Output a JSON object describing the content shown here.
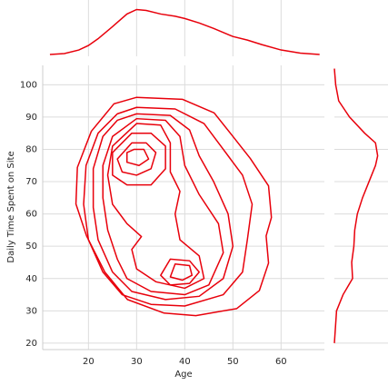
{
  "chart_data": {
    "type": "kde_joint",
    "xlabel": "Age",
    "ylabel": "Daily Time Spent on Site",
    "color": "#e8000b",
    "xlim": [
      10.5,
      69
    ],
    "xticks": [
      20,
      30,
      40,
      50,
      60
    ],
    "ylim": [
      18,
      106
    ],
    "yticks": [
      20,
      30,
      40,
      50,
      60,
      70,
      80,
      90,
      100
    ],
    "grid": true,
    "contours": [
      {
        "x": [
          30,
          39.5,
          46.1,
          49.9,
          53.6,
          57.4,
          58,
          56.9,
          57.4,
          55.5,
          50.8,
          42.3,
          35.7,
          28.1,
          23.4,
          19.6,
          17.4,
          17.7,
          20.6,
          25.3
        ],
        "y": [
          96.1,
          95.5,
          91.3,
          84.2,
          77.2,
          68.7,
          58.9,
          53.2,
          44.8,
          36.3,
          30.7,
          28.5,
          29.3,
          33.5,
          42,
          53.2,
          63.1,
          74.4,
          85.6,
          94.1
        ]
      },
      {
        "x": [
          30,
          38,
          44,
          48,
          52,
          54,
          53,
          52,
          48,
          40,
          33,
          27,
          23,
          20,
          19,
          19.5,
          22,
          26
        ],
        "y": [
          93,
          92.5,
          88,
          80,
          72,
          63,
          52,
          42,
          35,
          31.5,
          32,
          35,
          42,
          52,
          63,
          75,
          85,
          91
        ]
      },
      {
        "x": [
          30,
          37,
          41,
          43,
          46,
          49,
          50,
          48,
          43,
          36,
          29,
          25,
          22,
          21,
          21,
          23,
          26
        ],
        "y": [
          91,
          90.5,
          86,
          78,
          70,
          60,
          50,
          40,
          34.5,
          33.5,
          36,
          42,
          52,
          62,
          74,
          84,
          89
        ]
      },
      {
        "x": [
          30,
          36,
          39,
          40,
          43,
          47,
          48,
          45,
          40,
          33,
          28,
          26,
          24,
          23,
          23,
          25
        ],
        "y": [
          89.5,
          89,
          84,
          75,
          66,
          57,
          48,
          38,
          35,
          36,
          40,
          46,
          55,
          65,
          75,
          84
        ]
      },
      {
        "x": [
          30,
          35,
          37,
          37,
          39,
          38,
          39,
          43,
          44,
          40,
          34,
          30,
          29,
          31,
          28,
          25,
          24,
          25
        ],
        "y": [
          88,
          87.5,
          82,
          73,
          67,
          60,
          52,
          47,
          40,
          37,
          39,
          43,
          49,
          53,
          57,
          63,
          72,
          81
        ]
      },
      {
        "x": [
          29,
          33,
          36,
          36,
          33,
          28,
          25,
          25
        ],
        "y": [
          85,
          85,
          81,
          74,
          69,
          69,
          72,
          79
        ]
      },
      {
        "x": [
          29,
          32,
          34,
          33,
          30,
          27,
          26
        ],
        "y": [
          82,
          82,
          79,
          74,
          72,
          73,
          77
        ]
      },
      {
        "x": [
          29.5,
          31.5,
          32.5,
          30.5,
          28,
          28
        ],
        "y": [
          80,
          80,
          77,
          75,
          76,
          79
        ]
      },
      {
        "x": [
          37,
          41,
          43,
          41,
          37,
          35
        ],
        "y": [
          46,
          45.5,
          42,
          38.5,
          38,
          41
        ]
      },
      {
        "x": [
          38,
          41,
          41.5,
          39.5,
          37
        ],
        "y": [
          44.5,
          44,
          41,
          39.5,
          40.5
        ]
      }
    ],
    "marginal_x": {
      "x": [
        12,
        15,
        18,
        20,
        22,
        25,
        28,
        30,
        32,
        35,
        38,
        40,
        43,
        46,
        50,
        53,
        56,
        60,
        64,
        68
      ],
      "density": [
        0,
        0.02,
        0.1,
        0.2,
        0.35,
        0.62,
        0.9,
        1,
        0.98,
        0.9,
        0.85,
        0.8,
        0.7,
        0.58,
        0.4,
        0.32,
        0.22,
        0.1,
        0.03,
        0
      ],
      "dlim": [
        0,
        1.05
      ]
    },
    "marginal_y": {
      "y": [
        20,
        30,
        35,
        40,
        45,
        50,
        55,
        60,
        65,
        70,
        75,
        78,
        82,
        85,
        90,
        95,
        100,
        105
      ],
      "density": [
        0,
        0.05,
        0.2,
        0.42,
        0.4,
        0.45,
        0.47,
        0.53,
        0.65,
        0.8,
        0.95,
        1,
        0.95,
        0.7,
        0.35,
        0.1,
        0.03,
        0
      ],
      "dlim": [
        0,
        1.05
      ]
    }
  }
}
